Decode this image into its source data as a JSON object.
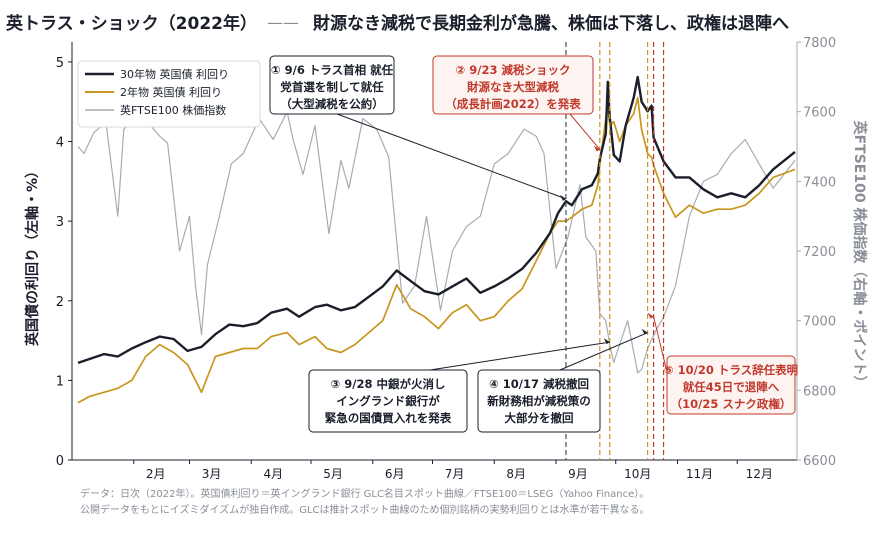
{
  "chart_data": {
    "type": "line",
    "title": "英トラス・ショック（2022年）",
    "title_rule": "——",
    "subtitle": "財源なき減税で長期金利が急騰、株価は下落し、政権は退陣へ",
    "ylabel": "英国債の利回り（左軸・%）",
    "y2label": "英FTSE100 株価指数（右軸・ポイント）",
    "ylim": [
      0,
      5.25
    ],
    "y2lim": [
      6600,
      7800
    ],
    "xlim": [
      "2022-01-01",
      "2022-12-31"
    ],
    "yticks": [
      "0",
      "1",
      "2",
      "3",
      "4",
      "5"
    ],
    "y2ticks": [
      "6600",
      "6800",
      "7000",
      "7200",
      "7400",
      "7600",
      "7800"
    ],
    "xticks": [
      {
        "date": "2022-02-01",
        "label": "2月"
      },
      {
        "date": "2022-03-01",
        "label": "3月"
      },
      {
        "date": "2022-04-01",
        "label": "4月"
      },
      {
        "date": "2022-05-01",
        "label": "5月"
      },
      {
        "date": "2022-06-01",
        "label": "6月"
      },
      {
        "date": "2022-07-01",
        "label": "7月"
      },
      {
        "date": "2022-08-01",
        "label": "8月"
      },
      {
        "date": "2022-09-01",
        "label": "9月"
      },
      {
        "date": "2022-10-01",
        "label": "10月"
      },
      {
        "date": "2022-11-01",
        "label": "11月"
      },
      {
        "date": "2022-12-01",
        "label": "12月"
      }
    ],
    "grid": false,
    "legend_position": "top-left",
    "series": [
      {
        "name": "30年物 英国債 利回り",
        "axis": "left",
        "color": "#1a1f2b",
        "points": [
          [
            "2022-01-04",
            1.22
          ],
          [
            "2022-01-10",
            1.27
          ],
          [
            "2022-01-17",
            1.33
          ],
          [
            "2022-01-24",
            1.3
          ],
          [
            "2022-01-31",
            1.4
          ],
          [
            "2022-02-07",
            1.48
          ],
          [
            "2022-02-14",
            1.55
          ],
          [
            "2022-02-21",
            1.52
          ],
          [
            "2022-02-28",
            1.37
          ],
          [
            "2022-03-07",
            1.42
          ],
          [
            "2022-03-14",
            1.58
          ],
          [
            "2022-03-21",
            1.7
          ],
          [
            "2022-03-28",
            1.68
          ],
          [
            "2022-04-04",
            1.72
          ],
          [
            "2022-04-11",
            1.85
          ],
          [
            "2022-04-19",
            1.9
          ],
          [
            "2022-04-25",
            1.8
          ],
          [
            "2022-05-03",
            1.92
          ],
          [
            "2022-05-09",
            1.95
          ],
          [
            "2022-05-16",
            1.88
          ],
          [
            "2022-05-23",
            1.92
          ],
          [
            "2022-05-30",
            2.05
          ],
          [
            "2022-06-06",
            2.18
          ],
          [
            "2022-06-13",
            2.38
          ],
          [
            "2022-06-20",
            2.25
          ],
          [
            "2022-06-27",
            2.12
          ],
          [
            "2022-07-04",
            2.08
          ],
          [
            "2022-07-11",
            2.18
          ],
          [
            "2022-07-18",
            2.28
          ],
          [
            "2022-07-25",
            2.1
          ],
          [
            "2022-08-01",
            2.18
          ],
          [
            "2022-08-08",
            2.28
          ],
          [
            "2022-08-15",
            2.4
          ],
          [
            "2022-08-22",
            2.6
          ],
          [
            "2022-08-29",
            2.85
          ],
          [
            "2022-09-02",
            3.1
          ],
          [
            "2022-09-06",
            3.25
          ],
          [
            "2022-09-09",
            3.2
          ],
          [
            "2022-09-14",
            3.4
          ],
          [
            "2022-09-19",
            3.45
          ],
          [
            "2022-09-22",
            3.6
          ],
          [
            "2022-09-23",
            3.78
          ],
          [
            "2022-09-26",
            4.1
          ],
          [
            "2022-09-27",
            4.75
          ],
          [
            "2022-09-28",
            4.3
          ],
          [
            "2022-09-30",
            3.83
          ],
          [
            "2022-10-03",
            3.75
          ],
          [
            "2022-10-06",
            4.2
          ],
          [
            "2022-10-10",
            4.55
          ],
          [
            "2022-10-12",
            4.81
          ],
          [
            "2022-10-14",
            4.5
          ],
          [
            "2022-10-17",
            4.38
          ],
          [
            "2022-10-19",
            4.45
          ],
          [
            "2022-10-20",
            4.05
          ],
          [
            "2022-10-25",
            3.75
          ],
          [
            "2022-10-31",
            3.55
          ],
          [
            "2022-11-07",
            3.55
          ],
          [
            "2022-11-14",
            3.4
          ],
          [
            "2022-11-21",
            3.3
          ],
          [
            "2022-11-28",
            3.35
          ],
          [
            "2022-12-05",
            3.3
          ],
          [
            "2022-12-12",
            3.45
          ],
          [
            "2022-12-19",
            3.65
          ],
          [
            "2022-12-30",
            3.87
          ]
        ]
      },
      {
        "name": "2年物 英国債 利回り",
        "axis": "left",
        "color": "#c8961e",
        "points": [
          [
            "2022-01-04",
            0.72
          ],
          [
            "2022-01-10",
            0.8
          ],
          [
            "2022-01-17",
            0.85
          ],
          [
            "2022-01-24",
            0.9
          ],
          [
            "2022-01-31",
            1.0
          ],
          [
            "2022-02-07",
            1.3
          ],
          [
            "2022-02-14",
            1.45
          ],
          [
            "2022-02-21",
            1.35
          ],
          [
            "2022-02-28",
            1.2
          ],
          [
            "2022-03-07",
            0.85
          ],
          [
            "2022-03-14",
            1.3
          ],
          [
            "2022-03-21",
            1.35
          ],
          [
            "2022-03-28",
            1.4
          ],
          [
            "2022-04-04",
            1.4
          ],
          [
            "2022-04-11",
            1.55
          ],
          [
            "2022-04-19",
            1.6
          ],
          [
            "2022-04-25",
            1.45
          ],
          [
            "2022-05-03",
            1.55
          ],
          [
            "2022-05-09",
            1.4
          ],
          [
            "2022-05-16",
            1.35
          ],
          [
            "2022-05-23",
            1.45
          ],
          [
            "2022-05-30",
            1.6
          ],
          [
            "2022-06-06",
            1.75
          ],
          [
            "2022-06-13",
            2.2
          ],
          [
            "2022-06-20",
            1.9
          ],
          [
            "2022-06-27",
            1.8
          ],
          [
            "2022-07-04",
            1.65
          ],
          [
            "2022-07-11",
            1.85
          ],
          [
            "2022-07-18",
            1.95
          ],
          [
            "2022-07-25",
            1.75
          ],
          [
            "2022-08-01",
            1.8
          ],
          [
            "2022-08-08",
            2.0
          ],
          [
            "2022-08-15",
            2.15
          ],
          [
            "2022-08-22",
            2.5
          ],
          [
            "2022-08-29",
            2.85
          ],
          [
            "2022-09-02",
            3.0
          ],
          [
            "2022-09-06",
            3.0
          ],
          [
            "2022-09-09",
            3.05
          ],
          [
            "2022-09-14",
            3.15
          ],
          [
            "2022-09-19",
            3.2
          ],
          [
            "2022-09-22",
            3.45
          ],
          [
            "2022-09-23",
            3.7
          ],
          [
            "2022-09-26",
            4.3
          ],
          [
            "2022-09-27",
            4.45
          ],
          [
            "2022-09-28",
            4.2
          ],
          [
            "2022-09-30",
            4.25
          ],
          [
            "2022-10-03",
            4.0
          ],
          [
            "2022-10-06",
            4.2
          ],
          [
            "2022-10-10",
            4.35
          ],
          [
            "2022-10-12",
            4.55
          ],
          [
            "2022-10-14",
            4.15
          ],
          [
            "2022-10-17",
            3.85
          ],
          [
            "2022-10-19",
            3.8
          ],
          [
            "2022-10-20",
            3.7
          ],
          [
            "2022-10-25",
            3.35
          ],
          [
            "2022-10-31",
            3.05
          ],
          [
            "2022-11-07",
            3.2
          ],
          [
            "2022-11-14",
            3.1
          ],
          [
            "2022-11-21",
            3.15
          ],
          [
            "2022-11-28",
            3.15
          ],
          [
            "2022-12-05",
            3.2
          ],
          [
            "2022-12-12",
            3.35
          ],
          [
            "2022-12-19",
            3.55
          ],
          [
            "2022-12-30",
            3.65
          ]
        ]
      },
      {
        "name": "英FTSE100 株価指数",
        "axis": "right",
        "color": "#a7acb2",
        "points": [
          [
            "2022-01-04",
            7500
          ],
          [
            "2022-01-07",
            7480
          ],
          [
            "2022-01-12",
            7540
          ],
          [
            "2022-01-18",
            7570
          ],
          [
            "2022-01-24",
            7300
          ],
          [
            "2022-01-27",
            7550
          ],
          [
            "2022-02-02",
            7580
          ],
          [
            "2022-02-08",
            7570
          ],
          [
            "2022-02-14",
            7530
          ],
          [
            "2022-02-18",
            7510
          ],
          [
            "2022-02-24",
            7200
          ],
          [
            "2022-03-01",
            7300
          ],
          [
            "2022-03-04",
            7100
          ],
          [
            "2022-03-07",
            6960
          ],
          [
            "2022-03-10",
            7160
          ],
          [
            "2022-03-16",
            7300
          ],
          [
            "2022-03-22",
            7450
          ],
          [
            "2022-03-28",
            7480
          ],
          [
            "2022-04-05",
            7580
          ],
          [
            "2022-04-12",
            7520
          ],
          [
            "2022-04-19",
            7600
          ],
          [
            "2022-04-22",
            7520
          ],
          [
            "2022-04-27",
            7420
          ],
          [
            "2022-05-03",
            7560
          ],
          [
            "2022-05-10",
            7250
          ],
          [
            "2022-05-16",
            7460
          ],
          [
            "2022-05-20",
            7380
          ],
          [
            "2022-05-27",
            7580
          ],
          [
            "2022-06-03",
            7550
          ],
          [
            "2022-06-09",
            7470
          ],
          [
            "2022-06-16",
            7050
          ],
          [
            "2022-06-22",
            7100
          ],
          [
            "2022-06-28",
            7300
          ],
          [
            "2022-07-05",
            7030
          ],
          [
            "2022-07-11",
            7200
          ],
          [
            "2022-07-18",
            7270
          ],
          [
            "2022-07-25",
            7300
          ],
          [
            "2022-08-01",
            7450
          ],
          [
            "2022-08-08",
            7480
          ],
          [
            "2022-08-16",
            7550
          ],
          [
            "2022-08-22",
            7530
          ],
          [
            "2022-08-26",
            7480
          ],
          [
            "2022-09-01",
            7150
          ],
          [
            "2022-09-07",
            7240
          ],
          [
            "2022-09-13",
            7390
          ],
          [
            "2022-09-16",
            7240
          ],
          [
            "2022-09-21",
            7200
          ],
          [
            "2022-09-23",
            7020
          ],
          [
            "2022-09-26",
            7000
          ],
          [
            "2022-09-28",
            6930
          ],
          [
            "2022-09-30",
            6880
          ],
          [
            "2022-10-04",
            6950
          ],
          [
            "2022-10-07",
            7000
          ],
          [
            "2022-10-12",
            6850
          ],
          [
            "2022-10-14",
            6860
          ],
          [
            "2022-10-17",
            6920
          ],
          [
            "2022-10-21",
            6970
          ],
          [
            "2022-10-25",
            7010
          ],
          [
            "2022-10-31",
            7100
          ],
          [
            "2022-11-07",
            7300
          ],
          [
            "2022-11-14",
            7400
          ],
          [
            "2022-11-21",
            7420
          ],
          [
            "2022-11-28",
            7480
          ],
          [
            "2022-12-05",
            7520
          ],
          [
            "2022-12-12",
            7450
          ],
          [
            "2022-12-19",
            7380
          ],
          [
            "2022-12-30",
            7460
          ]
        ]
      }
    ],
    "vlines": [
      {
        "date": "2022-09-06",
        "color": "#4a4f5c"
      },
      {
        "date": "2022-09-23",
        "color": "#c8961e"
      },
      {
        "date": "2022-09-28",
        "color": "#c8961e"
      },
      {
        "date": "2022-10-17",
        "color": "#c8961e"
      },
      {
        "date": "2022-10-20",
        "color": "#c0392b"
      },
      {
        "date": "2022-10-25",
        "color": "#c0392b"
      }
    ],
    "annotations": [
      {
        "id": "a1",
        "lines": [
          "① 9/6 トラス首相 就任",
          "党首選を制して就任",
          "（大型減税を公約）"
        ],
        "style": "dark",
        "target": [
          "2022-09-06",
          3.28
        ]
      },
      {
        "id": "a2",
        "lines": [
          "② 9/23 減税ショック",
          "財源なき大型減税",
          "（成長計画2022）を発表"
        ],
        "style": "red",
        "target": [
          "2022-09-23",
          3.9
        ]
      },
      {
        "id": "a3",
        "lines": [
          "③ 9/28 中銀が火消し",
          "イングランド銀行が",
          "緊急の国債買入れを発表"
        ],
        "style": "dark",
        "target": [
          "2022-09-28",
          1.48
        ]
      },
      {
        "id": "a4",
        "lines": [
          "④ 10/17 減税撤回",
          "新財務相が減税策の",
          "大部分を撤回"
        ],
        "style": "dark",
        "target": [
          "2022-10-17",
          1.6
        ]
      },
      {
        "id": "a5",
        "lines": [
          "⑤ 10/20 トラス辞任表明",
          "就任45日で退陣へ",
          "（10/25 スナク政権）"
        ],
        "style": "red",
        "target": [
          "2022-10-20",
          1.8
        ]
      }
    ],
    "source_note": [
      "データ：日次（2022年）。英国債利回り＝英イングランド銀行 GLC名目スポット曲線／FTSE100＝LSEG（Yahoo Finance）。",
      "公開データをもとにイズミダイズムが独自作成。GLCは推計スポット曲線のため個別銘柄の実勢利回りとは水準が若干異なる。"
    ]
  }
}
